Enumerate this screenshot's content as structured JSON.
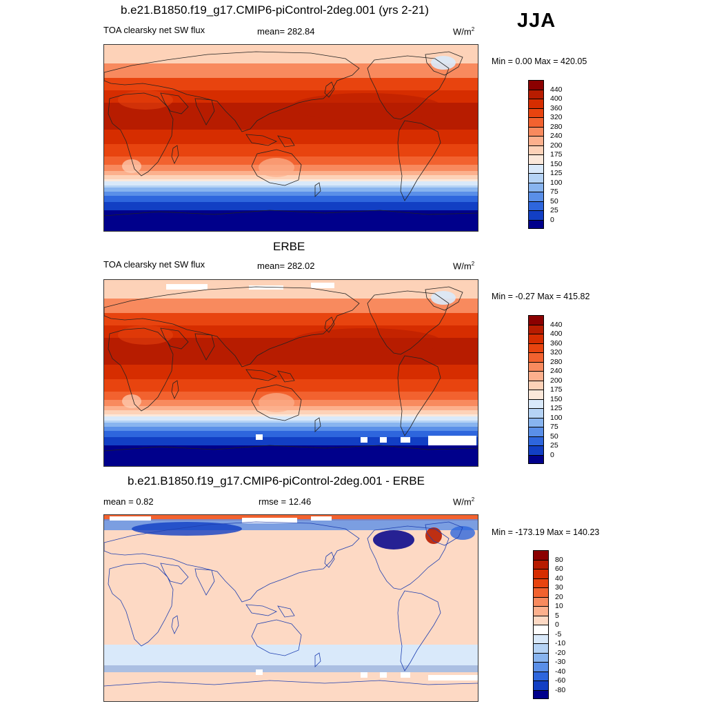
{
  "season": "JJA",
  "panels": [
    {
      "title": "b.e21.B1850.f19_g17.CMIP6-piControl-2deg.001 (yrs 2-21)",
      "left_label": "TOA clearsky net SW flux",
      "center_label": "mean= 282.84",
      "unit_base": "W/m",
      "unit_sup": "2",
      "minmax": "Min =   0.00 Max = 420.05",
      "colorbar_labels": [
        "440",
        "400",
        "360",
        "320",
        "280",
        "240",
        "200",
        "175",
        "150",
        "125",
        "100",
        "75",
        "50",
        "25",
        "0"
      ]
    },
    {
      "title": "ERBE",
      "left_label": "TOA clearsky net SW flux",
      "center_label": "mean= 282.02",
      "unit_base": "W/m",
      "unit_sup": "2",
      "minmax": "Min =  -0.27 Max = 415.82",
      "colorbar_labels": [
        "440",
        "400",
        "360",
        "320",
        "280",
        "240",
        "200",
        "175",
        "150",
        "125",
        "100",
        "75",
        "50",
        "25",
        "0"
      ]
    },
    {
      "title": "b.e21.B1850.f19_g17.CMIP6-piControl-2deg.001 - ERBE",
      "left_label": "mean =   0.82",
      "center_label": "rmse =  12.46",
      "unit_base": "W/m",
      "unit_sup": "2",
      "minmax": "Min = -173.19 Max = 140.23",
      "colorbar_labels": [
        "80",
        "60",
        "40",
        "30",
        "20",
        "10",
        "5",
        "0",
        "-5",
        "-10",
        "-20",
        "-30",
        "-40",
        "-60",
        "-80"
      ]
    }
  ],
  "colors": {
    "flux_scale": [
      "#8b0000",
      "#b71c00",
      "#d62d00",
      "#e8440f",
      "#f2622f",
      "#f88a5e",
      "#fcb08d",
      "#fdd2b8",
      "#fbe8da",
      "#d9e9fa",
      "#b5d3f5",
      "#88b4ef",
      "#5a8fe8",
      "#2e66dd",
      "#123fc4",
      "#00008b"
    ],
    "diff_scale": [
      "#8b0000",
      "#b71c00",
      "#d62d00",
      "#e8440f",
      "#f2622f",
      "#f88a5e",
      "#fcb08d",
      "#fdd9c4",
      "#ffffff",
      "#d9e9fa",
      "#b5d3f5",
      "#88b4ef",
      "#5a8fe8",
      "#2e66dd",
      "#123fc4",
      "#00008b"
    ]
  }
}
